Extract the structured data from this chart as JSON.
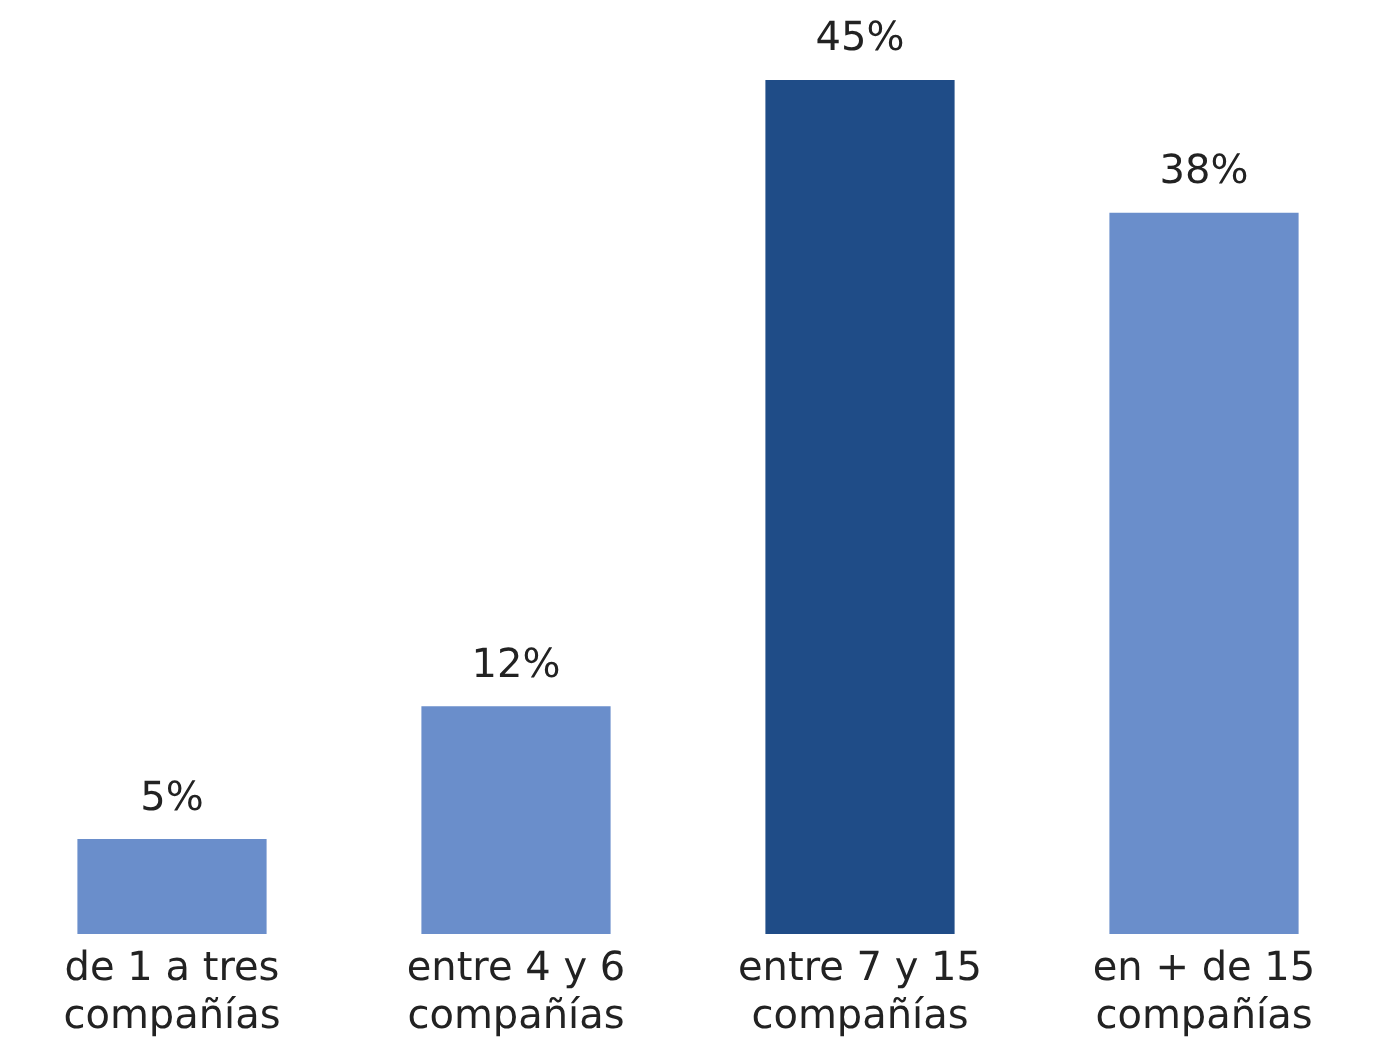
{
  "chart_data": {
    "type": "bar",
    "categories": [
      "de 1 a tres compañías",
      "entre 4 y 6 compañías",
      "entre 7 y 15 compañías",
      "en + de 15 compañías"
    ],
    "values": [
      5,
      12,
      45,
      38
    ],
    "colors": [
      "#6a8ecb",
      "#6a8ecb",
      "#1f4c87",
      "#6a8ecb"
    ],
    "value_labels": [
      "5%",
      "12%",
      "45%",
      "38%"
    ],
    "grid": false,
    "legend": false
  }
}
